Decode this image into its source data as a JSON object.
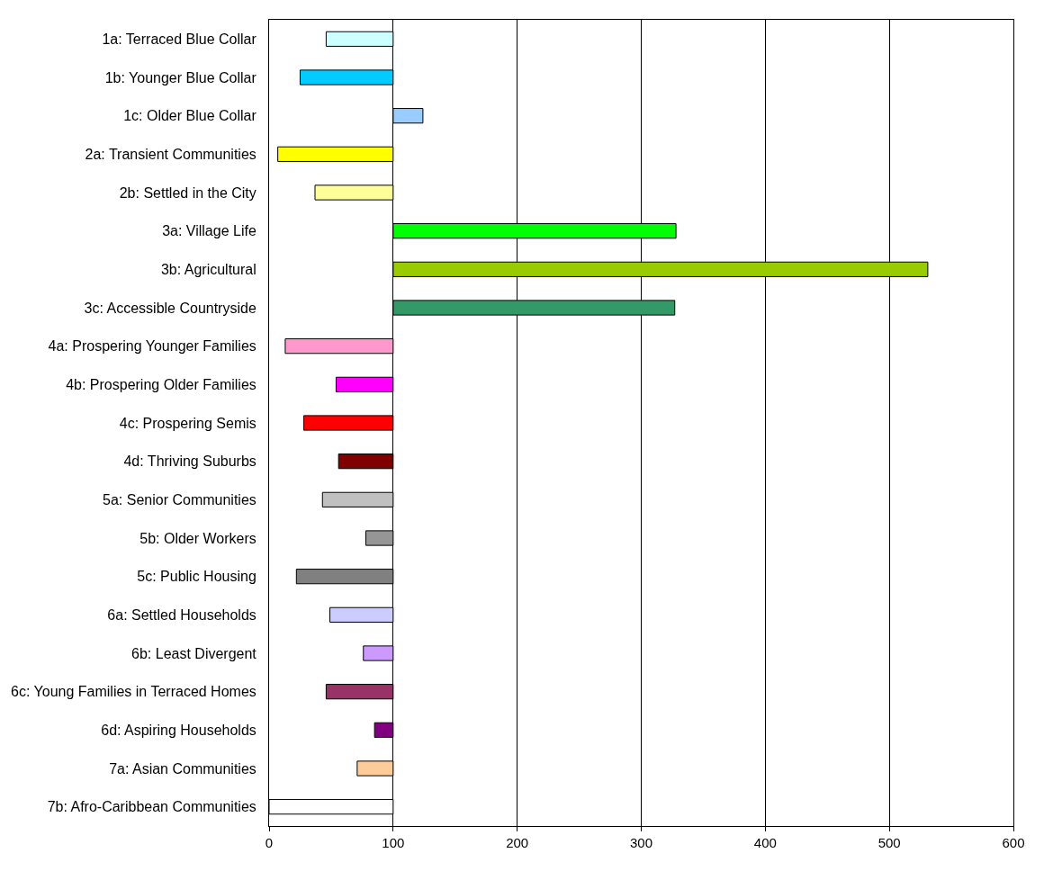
{
  "chart_data": {
    "type": "bar",
    "orientation": "horizontal",
    "categories": [
      "1a: Terraced Blue Collar",
      "1b: Younger Blue Collar",
      "1c: Older Blue Collar",
      "2a: Transient Communities",
      "2b: Settled in the City",
      "3a: Village Life",
      "3b: Agricultural",
      "3c: Accessible Countryside",
      "4a: Prospering Younger Families",
      "4b: Prospering Older Families",
      "4c: Prospering Semis",
      "4d: Thriving Suburbs",
      "5a: Senior Communities",
      "5b: Older Workers",
      "5c: Public Housing",
      "6a: Settled Households",
      "6b: Least Divergent",
      "6c: Young Families in Terraced Homes",
      "6d: Aspiring Households",
      "7a: Asian Communities",
      "7b: Afro-Caribbean Communities"
    ],
    "base": [
      100,
      100,
      100,
      100,
      100,
      100,
      100,
      100,
      100,
      100,
      100,
      100,
      100,
      100,
      100,
      100,
      100,
      100,
      100,
      100,
      100
    ],
    "values": [
      -54,
      -75,
      24,
      -93,
      -63,
      228,
      431,
      227,
      -87,
      -46,
      -72,
      -44,
      -57,
      -22,
      -78,
      -51,
      -24,
      -54,
      -15,
      -29,
      -100
    ],
    "colors": [
      "#ccffff",
      "#00ccff",
      "#99ccff",
      "#ffff00",
      "#ffff99",
      "#00ff00",
      "#99cc00",
      "#339966",
      "#ff99cc",
      "#ff00ff",
      "#ff0000",
      "#800000",
      "#c0c0c0",
      "#969696",
      "#808080",
      "#ccccff",
      "#cc99ff",
      "#993366",
      "#800080",
      "#ffcc99",
      "#ffffff"
    ],
    "xlim": [
      0,
      600
    ],
    "xticks": [
      0,
      100,
      200,
      300,
      400,
      500,
      600
    ],
    "grid": "x"
  }
}
